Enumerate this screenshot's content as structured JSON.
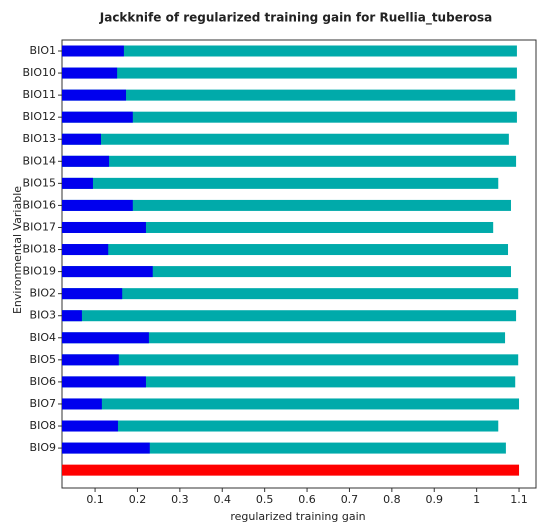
{
  "chart_data": {
    "type": "bar",
    "orientation": "horizontal",
    "title": "Jackknife of regularized training gain for Ruellia_tuberosa",
    "xlabel": "regularized training gain",
    "ylabel": "Environmental Variable",
    "categories": [
      "BIO1",
      "BIO10",
      "BIO11",
      "BIO12",
      "BIO13",
      "BIO14",
      "BIO15",
      "BIO16",
      "BIO17",
      "BIO18",
      "BIO19",
      "BIO2",
      "BIO3",
      "BIO4",
      "BIO5",
      "BIO6",
      "BIO7",
      "BIO8",
      "BIO9",
      null
    ],
    "series": [
      {
        "color": "#00aaaa",
        "values": [
          1.095,
          1.095,
          1.091,
          1.095,
          1.076,
          1.093,
          1.051,
          1.081,
          1.039,
          1.074,
          1.081,
          1.098,
          1.093,
          1.067,
          1.098,
          1.091,
          1.1,
          1.051,
          1.069,
          null
        ]
      },
      {
        "color": "#0000ee",
        "values": [
          0.168,
          0.152,
          0.173,
          0.189,
          0.114,
          0.133,
          0.095,
          0.189,
          0.22,
          0.131,
          0.236,
          0.164,
          0.069,
          0.227,
          0.156,
          0.22,
          0.116,
          0.154,
          0.229,
          null
        ]
      },
      {
        "color": "#ff0000",
        "values": [
          null,
          null,
          null,
          null,
          null,
          null,
          null,
          null,
          null,
          null,
          null,
          null,
          null,
          null,
          null,
          null,
          null,
          null,
          null,
          1.1
        ]
      }
    ],
    "xlim": [
      0.022,
      1.14
    ],
    "xticks": [
      0.1,
      0.2,
      0.3,
      0.4,
      0.5,
      0.6,
      0.7,
      0.8,
      0.9,
      1.0,
      1.1
    ]
  }
}
